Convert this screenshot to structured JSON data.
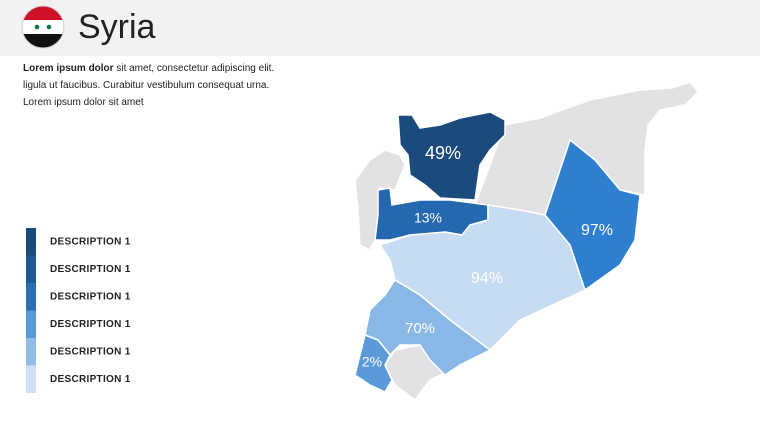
{
  "header": {
    "title": "Syria"
  },
  "intro": {
    "bold": "Lorem ipsum dolor",
    "lines": [
      " sit amet, consectetur adipiscing elit.",
      "ligula ut faucibus. Curabitur vestibulum consequat urna.",
      "Lorem ipsum dolor sit amet"
    ]
  },
  "legend": [
    {
      "label": "DESCRIPTION 1",
      "color": "#1a4a7a"
    },
    {
      "label": "DESCRIPTION 1",
      "color": "#1f5a94"
    },
    {
      "label": "DESCRIPTION 1",
      "color": "#2a6fb3"
    },
    {
      "label": "DESCRIPTION 1",
      "color": "#5a9ad8"
    },
    {
      "label": "DESCRIPTION 1",
      "color": "#90bde8"
    },
    {
      "label": "DESCRIPTION 1",
      "color": "#cfe0f5"
    }
  ],
  "regions": [
    {
      "label": "49%",
      "color": "#1b4a7c"
    },
    {
      "label": "13%",
      "color": "#2468b0"
    },
    {
      "label": "94%",
      "color": "#c5dcf3"
    },
    {
      "label": "97%",
      "color": "#2f7fd0"
    },
    {
      "label": "70%",
      "color": "#8ab8e6"
    },
    {
      "label": "2%",
      "color": "#5b9ad8"
    }
  ]
}
